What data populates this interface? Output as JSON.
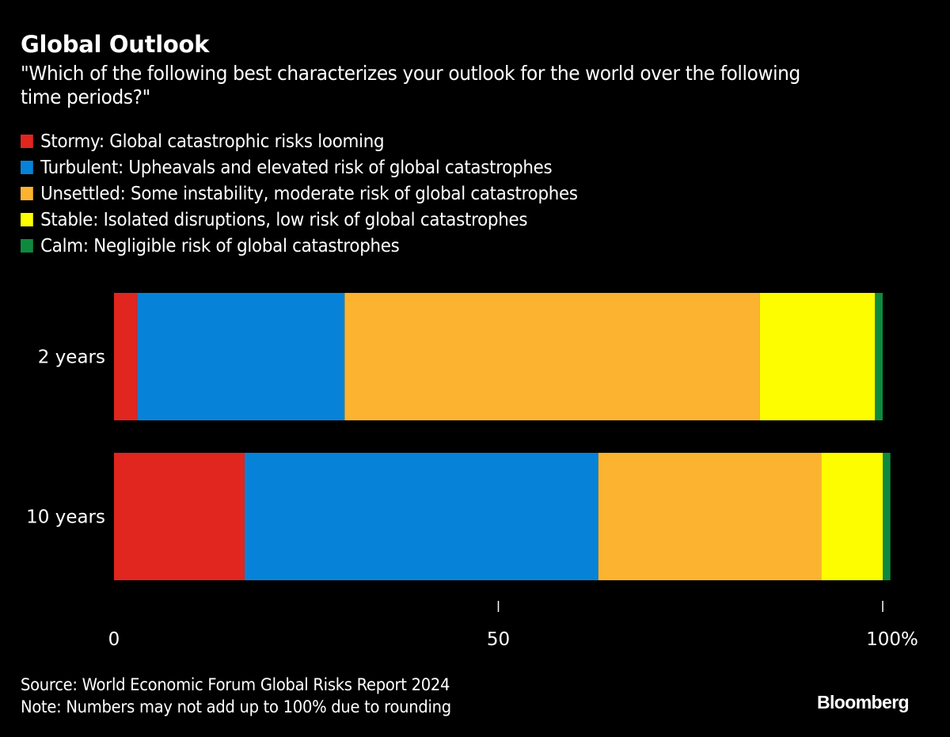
{
  "header": {
    "title": "Global Outlook",
    "subtitle": "\"Which of the following best characterizes your outlook for the world over the following time periods?\""
  },
  "legend": [
    {
      "label": "Stormy: Global catastrophic risks looming",
      "color": "#e0261f"
    },
    {
      "label": "Turbulent: Upheavals and elevated risk of global catastrophes",
      "color": "#0683d9"
    },
    {
      "label": "Unsettled: Some instability, moderate risk of global catastrophes",
      "color": "#fcb32f"
    },
    {
      "label": "Stable: Isolated disruptions, low risk of global catastrophes",
      "color": "#fdfd00"
    },
    {
      "label": "Calm: Negligible risk of global catastrophes",
      "color": "#0e8a3e"
    }
  ],
  "chart_data": {
    "type": "bar",
    "orientation": "horizontal",
    "stacked": true,
    "title": "Global Outlook",
    "subtitle": "\"Which of the following best characterizes your outlook for the world over the following time periods?\"",
    "categories": [
      "2 years",
      "10 years"
    ],
    "series": [
      {
        "name": "Stormy: Global catastrophic risks looming",
        "color": "#e0261f",
        "values": [
          3,
          17
        ]
      },
      {
        "name": "Turbulent: Upheavals and elevated risk of global catastrophes",
        "color": "#0683d9",
        "values": [
          27,
          46
        ]
      },
      {
        "name": "Unsettled: Some instability, moderate risk of global catastrophes",
        "color": "#fcb32f",
        "values": [
          54,
          29
        ]
      },
      {
        "name": "Stable: Isolated disruptions, low risk of global catastrophes",
        "color": "#fdfd00",
        "values": [
          15,
          8
        ]
      },
      {
        "name": "Calm: Negligible risk of global catastrophes",
        "color": "#0e8a3e",
        "values": [
          1,
          1
        ]
      }
    ],
    "xlim": [
      0,
      100
    ],
    "xticks": [
      0,
      50,
      100
    ],
    "xtick_labels": [
      "0",
      "50",
      "100%"
    ],
    "xlabel": "",
    "ylabel": "",
    "grid": false,
    "legend_position": "top-left"
  },
  "footer": {
    "source": "Source: World Economic Forum Global Risks Report 2024",
    "note": "Note: Numbers may not add up to 100% due to rounding"
  },
  "brand": "Bloomberg"
}
